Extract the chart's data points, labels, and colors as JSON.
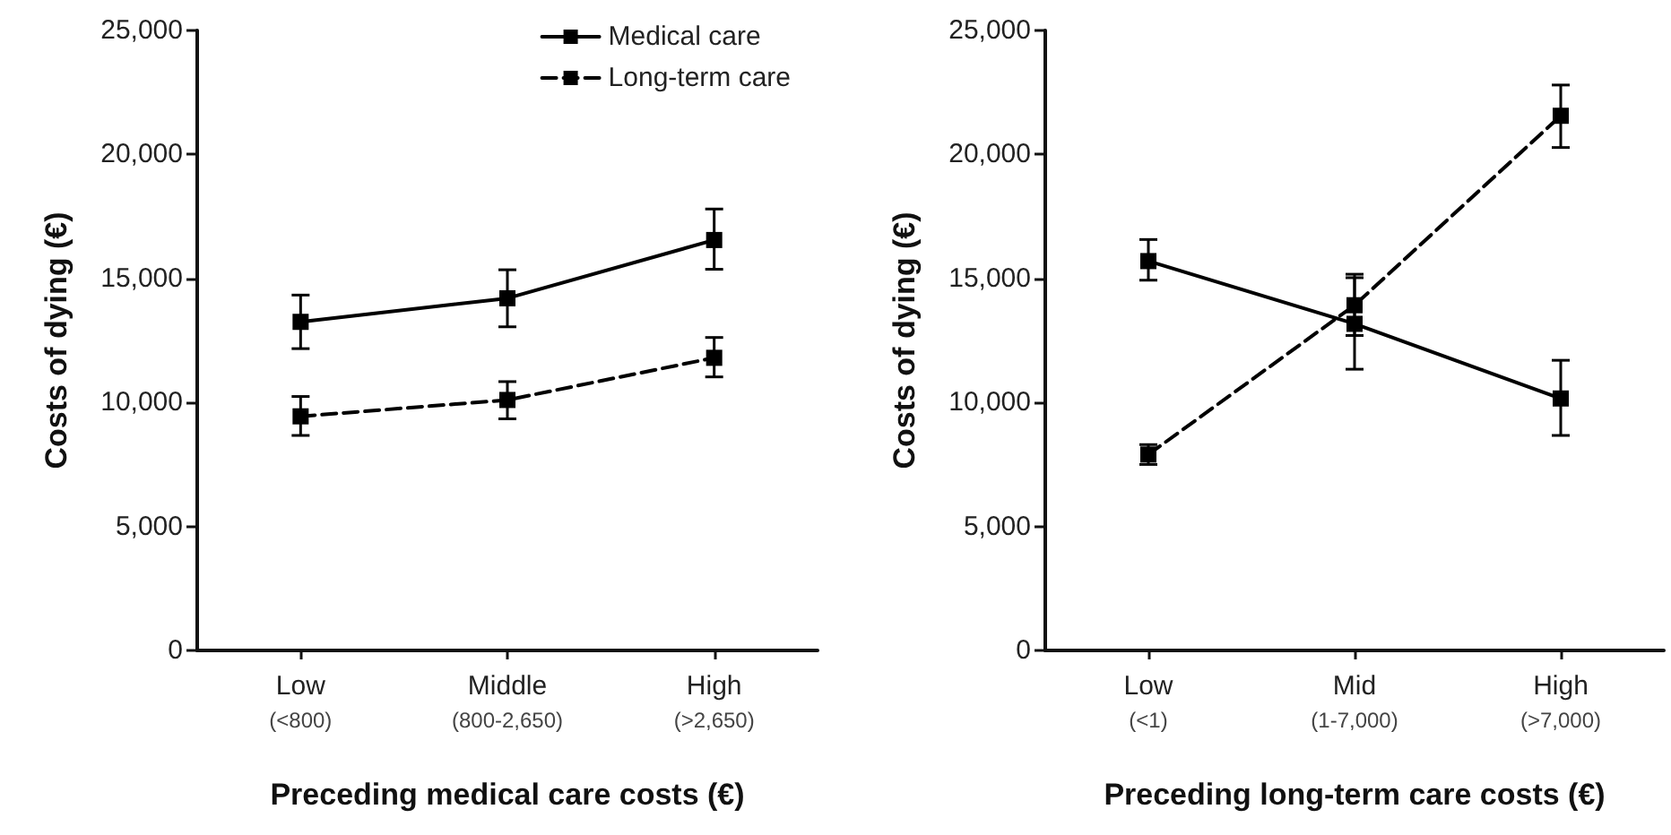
{
  "chart_data": [
    {
      "type": "line",
      "xlabel": "Preceding medical care costs (€)",
      "ylabel": "Costs of dying (€)",
      "categories": [
        "Low\n(<800)",
        "Middle\n(800-2,650)",
        "High\n(>2,650)"
      ],
      "ylim": [
        0,
        25000
      ],
      "yticks": [
        {
          "value": 0,
          "label": "0"
        },
        {
          "value": 5000,
          "label": "5,000"
        },
        {
          "value": 10000,
          "label": "10,000"
        },
        {
          "value": 15000,
          "label": "15,000"
        },
        {
          "value": 20000,
          "label": "20,000"
        },
        {
          "value": 25000,
          "label": "25,000"
        }
      ],
      "grid": false,
      "legend": "top right",
      "marker": "square",
      "series": [
        {
          "name": "Medical care",
          "color": "#000000",
          "line_style": "solid",
          "values": [
            13250,
            14200,
            16550
          ],
          "errors": [
            [
              12170,
              14330
            ],
            [
              13050,
              15350
            ],
            [
              15370,
              17800
            ]
          ]
        },
        {
          "name": "Long-term care",
          "color": "#000000",
          "line_style": "dashed",
          "values": [
            9440,
            10100,
            11800
          ],
          "errors": [
            [
              8670,
              10240
            ],
            [
              9340,
              10840
            ],
            [
              11030,
              12620
            ]
          ]
        }
      ]
    },
    {
      "type": "line",
      "xlabel": "Preceding long-term care costs (€)",
      "ylabel": "Costs of dying (€)",
      "categories": [
        "Low\n(<1)",
        "Mid\n(1-7,000)",
        "High\n(>7,000)"
      ],
      "ylim": [
        0,
        25000
      ],
      "yticks": [
        {
          "value": 0,
          "label": "0"
        },
        {
          "value": 5000,
          "label": "5,000"
        },
        {
          "value": 10000,
          "label": "10,000"
        },
        {
          "value": 15000,
          "label": "15,000"
        },
        {
          "value": 20000,
          "label": "20,000"
        },
        {
          "value": 25000,
          "label": "25,000"
        }
      ],
      "grid": false,
      "marker": "square",
      "series": [
        {
          "color": "#000000",
          "line_style": "solid",
          "values": [
            15700,
            13170,
            10160
          ],
          "errors": [
            [
              14930,
              16570
            ],
            [
              11340,
              15030
            ],
            [
              8670,
              11700
            ]
          ]
        },
        {
          "color": "#000000",
          "line_style": "dashed",
          "values": [
            7900,
            13920,
            21560
          ],
          "errors": [
            [
              7500,
              8300
            ],
            [
              12700,
              15170
            ],
            [
              20280,
              22800
            ]
          ]
        }
      ]
    }
  ]
}
